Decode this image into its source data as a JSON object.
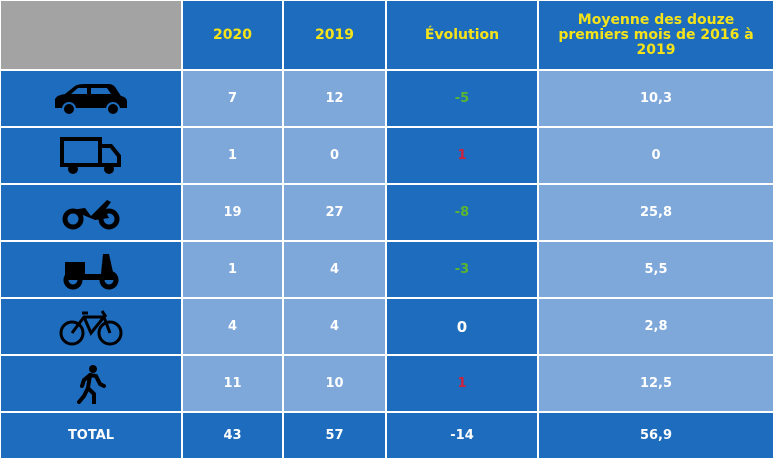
{
  "table": {
    "header": [
      "2020",
      "2019",
      "Évolution",
      "Moyenne des douze premiers mois de 2016 à 2019"
    ],
    "rows": [
      [
        "7",
        "12",
        "-5",
        "10,3"
      ],
      [
        "1",
        "0",
        "1",
        "0"
      ],
      [
        "19",
        "27",
        "-8",
        "25,8"
      ],
      [
        "1",
        "4",
        "-3",
        "5,5"
      ],
      [
        "4",
        "4",
        "0",
        "2,8"
      ],
      [
        "11",
        "10",
        "1",
        "12,5"
      ]
    ],
    "total": [
      "TOTAL",
      "43",
      "57",
      "-14",
      "56,9"
    ]
  }
}
